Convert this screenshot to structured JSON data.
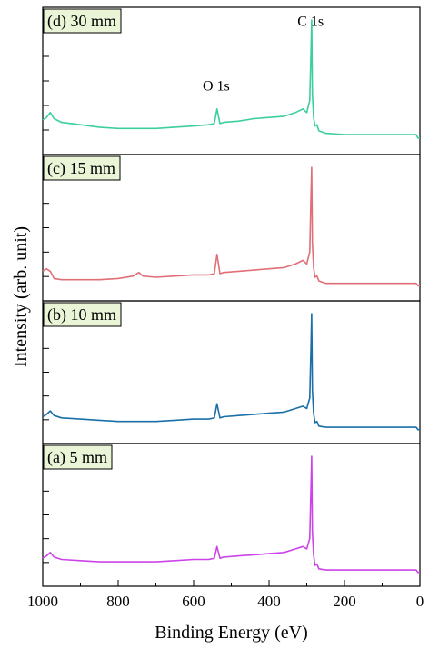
{
  "chart_data": {
    "type": "line",
    "xlabel": "Binding Energy (eV)",
    "ylabel": "Intensity (arb. unit)",
    "xlim": [
      1000,
      0
    ],
    "x_reversed": true,
    "x_ticks": [
      1000,
      800,
      600,
      400,
      200,
      0
    ],
    "panel_fill": "#eaf5d8",
    "panels": [
      {
        "label": "(d) 30 mm",
        "color": "#3ccf9c",
        "points": [
          [
            1000,
            0.18
          ],
          [
            990,
            0.2
          ],
          [
            980,
            0.24
          ],
          [
            970,
            0.19
          ],
          [
            950,
            0.16
          ],
          [
            900,
            0.14
          ],
          [
            850,
            0.12
          ],
          [
            800,
            0.11
          ],
          [
            750,
            0.11
          ],
          [
            700,
            0.11
          ],
          [
            650,
            0.12
          ],
          [
            600,
            0.13
          ],
          [
            560,
            0.14
          ],
          [
            545,
            0.15
          ],
          [
            538,
            0.27
          ],
          [
            530,
            0.15
          ],
          [
            520,
            0.16
          ],
          [
            480,
            0.17
          ],
          [
            440,
            0.19
          ],
          [
            400,
            0.2
          ],
          [
            360,
            0.21
          ],
          [
            330,
            0.24
          ],
          [
            310,
            0.27
          ],
          [
            300,
            0.24
          ],
          [
            292,
            0.34
          ],
          [
            289,
            0.72
          ],
          [
            287,
            1.0
          ],
          [
            285,
            0.4
          ],
          [
            282,
            0.2
          ],
          [
            278,
            0.13
          ],
          [
            273,
            0.14
          ],
          [
            268,
            0.09
          ],
          [
            250,
            0.07
          ],
          [
            200,
            0.06
          ],
          [
            150,
            0.06
          ],
          [
            100,
            0.06
          ],
          [
            50,
            0.06
          ],
          [
            10,
            0.06
          ],
          [
            5,
            0.03
          ],
          [
            0,
            0.03
          ]
        ],
        "annotations": [
          {
            "text": "C 1s",
            "x": 290,
            "y": 0.95
          },
          {
            "text": "O 1s",
            "x": 540,
            "y": 0.42
          }
        ]
      },
      {
        "label": "(c) 15 mm",
        "color": "#e06f78",
        "points": [
          [
            1000,
            0.14
          ],
          [
            990,
            0.16
          ],
          [
            980,
            0.14
          ],
          [
            970,
            0.08
          ],
          [
            950,
            0.07
          ],
          [
            900,
            0.07
          ],
          [
            850,
            0.07
          ],
          [
            800,
            0.08
          ],
          [
            760,
            0.1
          ],
          [
            745,
            0.13
          ],
          [
            735,
            0.1
          ],
          [
            700,
            0.09
          ],
          [
            650,
            0.1
          ],
          [
            600,
            0.11
          ],
          [
            560,
            0.11
          ],
          [
            545,
            0.12
          ],
          [
            538,
            0.28
          ],
          [
            530,
            0.12
          ],
          [
            520,
            0.13
          ],
          [
            480,
            0.14
          ],
          [
            440,
            0.15
          ],
          [
            400,
            0.16
          ],
          [
            360,
            0.17
          ],
          [
            330,
            0.2
          ],
          [
            310,
            0.23
          ],
          [
            300,
            0.2
          ],
          [
            292,
            0.3
          ],
          [
            289,
            0.75
          ],
          [
            287,
            1.0
          ],
          [
            285,
            0.38
          ],
          [
            282,
            0.17
          ],
          [
            278,
            0.09
          ],
          [
            273,
            0.1
          ],
          [
            268,
            0.06
          ],
          [
            250,
            0.04
          ],
          [
            200,
            0.04
          ],
          [
            150,
            0.04
          ],
          [
            100,
            0.04
          ],
          [
            50,
            0.04
          ],
          [
            10,
            0.04
          ],
          [
            5,
            0.02
          ],
          [
            0,
            0.02
          ]
        ]
      },
      {
        "label": "(b) 10 mm",
        "color": "#1a6fa8",
        "points": [
          [
            1000,
            0.12
          ],
          [
            990,
            0.14
          ],
          [
            980,
            0.17
          ],
          [
            970,
            0.13
          ],
          [
            950,
            0.11
          ],
          [
            900,
            0.1
          ],
          [
            850,
            0.09
          ],
          [
            800,
            0.08
          ],
          [
            750,
            0.08
          ],
          [
            700,
            0.08
          ],
          [
            650,
            0.09
          ],
          [
            600,
            0.1
          ],
          [
            560,
            0.1
          ],
          [
            545,
            0.11
          ],
          [
            538,
            0.23
          ],
          [
            530,
            0.11
          ],
          [
            520,
            0.12
          ],
          [
            480,
            0.13
          ],
          [
            440,
            0.14
          ],
          [
            400,
            0.15
          ],
          [
            360,
            0.16
          ],
          [
            330,
            0.19
          ],
          [
            310,
            0.21
          ],
          [
            300,
            0.19
          ],
          [
            292,
            0.28
          ],
          [
            289,
            0.7
          ],
          [
            287,
            1.0
          ],
          [
            285,
            0.35
          ],
          [
            282,
            0.15
          ],
          [
            278,
            0.07
          ],
          [
            273,
            0.08
          ],
          [
            268,
            0.04
          ],
          [
            250,
            0.03
          ],
          [
            200,
            0.03
          ],
          [
            150,
            0.03
          ],
          [
            100,
            0.03
          ],
          [
            50,
            0.03
          ],
          [
            10,
            0.03
          ],
          [
            5,
            0.01
          ],
          [
            0,
            0.01
          ]
        ]
      },
      {
        "label": "(a) 5 mm",
        "color": "#cc44e8",
        "points": [
          [
            1000,
            0.13
          ],
          [
            990,
            0.15
          ],
          [
            980,
            0.18
          ],
          [
            970,
            0.14
          ],
          [
            950,
            0.12
          ],
          [
            900,
            0.11
          ],
          [
            850,
            0.1
          ],
          [
            800,
            0.1
          ],
          [
            750,
            0.1
          ],
          [
            700,
            0.1
          ],
          [
            650,
            0.11
          ],
          [
            600,
            0.12
          ],
          [
            560,
            0.12
          ],
          [
            545,
            0.13
          ],
          [
            538,
            0.23
          ],
          [
            530,
            0.13
          ],
          [
            520,
            0.14
          ],
          [
            480,
            0.15
          ],
          [
            440,
            0.16
          ],
          [
            400,
            0.17
          ],
          [
            360,
            0.18
          ],
          [
            330,
            0.21
          ],
          [
            310,
            0.23
          ],
          [
            300,
            0.21
          ],
          [
            292,
            0.3
          ],
          [
            289,
            0.72
          ],
          [
            287,
            1.0
          ],
          [
            285,
            0.36
          ],
          [
            282,
            0.16
          ],
          [
            278,
            0.07
          ],
          [
            273,
            0.08
          ],
          [
            268,
            0.04
          ],
          [
            250,
            0.03
          ],
          [
            200,
            0.03
          ],
          [
            150,
            0.03
          ],
          [
            100,
            0.03
          ],
          [
            50,
            0.03
          ],
          [
            10,
            0.03
          ],
          [
            5,
            0.01
          ],
          [
            0,
            0.01
          ]
        ]
      }
    ]
  }
}
